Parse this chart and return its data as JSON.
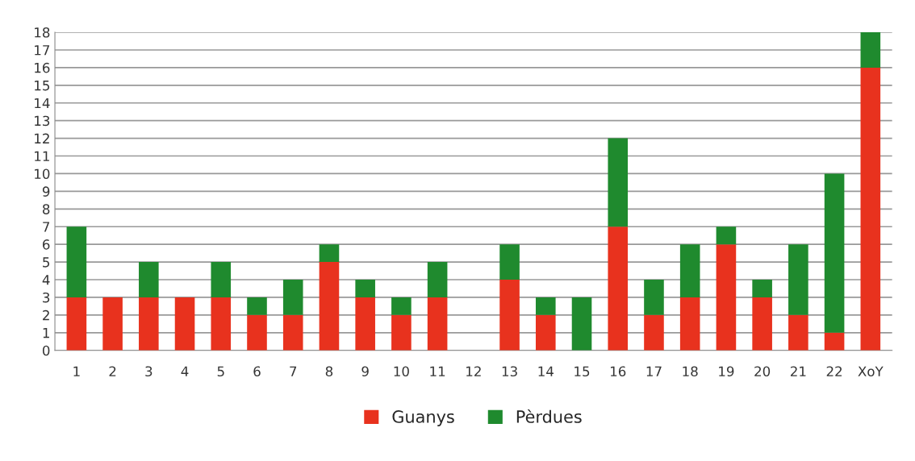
{
  "chart_data": {
    "type": "bar",
    "stacked": true,
    "categories": [
      "1",
      "2",
      "3",
      "4",
      "5",
      "6",
      "7",
      "8",
      "9",
      "10",
      "11",
      "12",
      "13",
      "14",
      "15",
      "16",
      "17",
      "18",
      "19",
      "20",
      "21",
      "22",
      "XoY"
    ],
    "series": [
      {
        "name": "Guanys",
        "color": "#e8321e",
        "values": [
          3,
          3,
          3,
          3,
          3,
          2,
          2,
          5,
          3,
          2,
          3,
          0,
          4,
          2,
          0,
          7,
          2,
          3,
          6,
          3,
          2,
          1,
          16
        ]
      },
      {
        "name": "Pèrdues",
        "color": "#1f8a2e",
        "values": [
          4,
          0,
          2,
          0,
          2,
          1,
          2,
          1,
          1,
          1,
          2,
          0,
          2,
          1,
          3,
          5,
          2,
          3,
          1,
          1,
          4,
          9,
          2
        ]
      }
    ],
    "ylim": [
      0,
      18
    ],
    "yticks": [
      0,
      1,
      2,
      3,
      4,
      5,
      6,
      7,
      8,
      9,
      10,
      11,
      12,
      13,
      14,
      15,
      16,
      17,
      18
    ],
    "grid": "y",
    "legend": "bottom"
  }
}
